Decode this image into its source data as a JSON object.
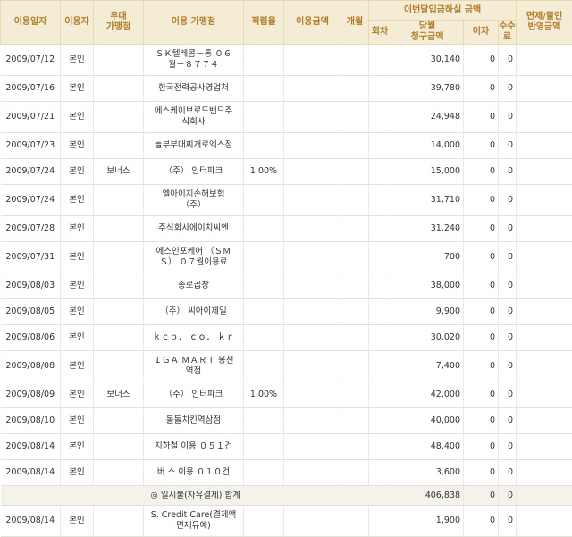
{
  "headers": {
    "use_date": "이용일자",
    "user": "이용자",
    "preferred_merchant": "우대\n가맹점",
    "merchant": "이용 가맹점",
    "accrual_rate": "적립율",
    "amount": "이용금액",
    "installment": "개월",
    "group": "이번달입금하실 금액",
    "installment_no": "회차",
    "current_billing": "당월\n청구금액",
    "interest": "이자",
    "fee": "수수\n료",
    "discount": "면제/할인\n반영금액"
  },
  "rows": [
    {
      "date": "2009/07/12",
      "user": "본인",
      "pref": "",
      "merchant": "ＳＫ텔레콤－통 ０６\n월－８７７４",
      "rate": "",
      "amount": "",
      "inst": "",
      "no": "",
      "billing": "30,140",
      "interest": "0",
      "fee": "0",
      "discount": ""
    },
    {
      "date": "2009/07/16",
      "user": "본인",
      "pref": "",
      "merchant": "한국전력공사영업처",
      "rate": "",
      "amount": "",
      "inst": "",
      "no": "",
      "billing": "39,780",
      "interest": "0",
      "fee": "0",
      "discount": ""
    },
    {
      "date": "2009/07/21",
      "user": "본인",
      "pref": "",
      "merchant": "에스케이브로드밴드주\n식회사",
      "rate": "",
      "amount": "",
      "inst": "",
      "no": "",
      "billing": "24,948",
      "interest": "0",
      "fee": "0",
      "discount": ""
    },
    {
      "date": "2009/07/23",
      "user": "본인",
      "pref": "",
      "merchant": "놀부부대찌개로엑스점",
      "rate": "",
      "amount": "",
      "inst": "",
      "no": "",
      "billing": "14,000",
      "interest": "0",
      "fee": "0",
      "discount": ""
    },
    {
      "date": "2009/07/24",
      "user": "본인",
      "pref": "보너스",
      "merchant": "（주） 인터파크",
      "rate": "1.00%",
      "amount": "",
      "inst": "",
      "no": "",
      "billing": "15,000",
      "interest": "0",
      "fee": "0",
      "discount": ""
    },
    {
      "date": "2009/07/24",
      "user": "본인",
      "pref": "",
      "merchant": "엘아이지손해보험\n（주）",
      "rate": "",
      "amount": "",
      "inst": "",
      "no": "",
      "billing": "31,710",
      "interest": "0",
      "fee": "0",
      "discount": ""
    },
    {
      "date": "2009/07/28",
      "user": "본인",
      "pref": "",
      "merchant": "주식회사에이치씨엔",
      "rate": "",
      "amount": "",
      "inst": "",
      "no": "",
      "billing": "31,240",
      "interest": "0",
      "fee": "0",
      "discount": ""
    },
    {
      "date": "2009/07/31",
      "user": "본인",
      "pref": "",
      "merchant": "에스인포케어 （ＳＭ\nＳ） ０７월이용료",
      "rate": "",
      "amount": "",
      "inst": "",
      "no": "",
      "billing": "700",
      "interest": "0",
      "fee": "0",
      "discount": ""
    },
    {
      "date": "2009/08/03",
      "user": "본인",
      "pref": "",
      "merchant": "종로곱창",
      "rate": "",
      "amount": "",
      "inst": "",
      "no": "",
      "billing": "38,000",
      "interest": "0",
      "fee": "0",
      "discount": ""
    },
    {
      "date": "2009/08/05",
      "user": "본인",
      "pref": "",
      "merchant": "（주） 씨아이제일",
      "rate": "",
      "amount": "",
      "inst": "",
      "no": "",
      "billing": "9,900",
      "interest": "0",
      "fee": "0",
      "discount": ""
    },
    {
      "date": "2009/08/06",
      "user": "본인",
      "pref": "",
      "merchant": "ｋｃｐ． ｃｏ． ｋｒ",
      "rate": "",
      "amount": "",
      "inst": "",
      "no": "",
      "billing": "30,020",
      "interest": "0",
      "fee": "0",
      "discount": ""
    },
    {
      "date": "2009/08/08",
      "user": "본인",
      "pref": "",
      "merchant": "ＩＧＡ ＭＡＲＴ 봉천\n역점",
      "rate": "",
      "amount": "",
      "inst": "",
      "no": "",
      "billing": "7,400",
      "interest": "0",
      "fee": "0",
      "discount": ""
    },
    {
      "date": "2009/08/09",
      "user": "본인",
      "pref": "보너스",
      "merchant": "（주） 인터파크",
      "rate": "1.00%",
      "amount": "",
      "inst": "",
      "no": "",
      "billing": "42,000",
      "interest": "0",
      "fee": "0",
      "discount": ""
    },
    {
      "date": "2009/08/10",
      "user": "본인",
      "pref": "",
      "merchant": "돌돌치킨역삼점",
      "rate": "",
      "amount": "",
      "inst": "",
      "no": "",
      "billing": "40,000",
      "interest": "0",
      "fee": "0",
      "discount": ""
    },
    {
      "date": "2009/08/14",
      "user": "본인",
      "pref": "",
      "merchant": "지하철 이용 ０５１건",
      "rate": "",
      "amount": "",
      "inst": "",
      "no": "",
      "billing": "48,400",
      "interest": "0",
      "fee": "0",
      "discount": ""
    },
    {
      "date": "2009/08/14",
      "user": "본인",
      "pref": "",
      "merchant": "버 스 이용 ０１０건",
      "rate": "",
      "amount": "",
      "inst": "",
      "no": "",
      "billing": "3,600",
      "interest": "0",
      "fee": "0",
      "discount": ""
    }
  ],
  "total": {
    "label": "◎ 일시불(자유결제) 합계",
    "billing": "406,838",
    "interest": "0",
    "fee": "0"
  },
  "after_rows": [
    {
      "date": "2009/08/14",
      "user": "본인",
      "pref": "",
      "merchant": "S. Credit Care(결제액\n면제유예)",
      "rate": "",
      "amount": "",
      "inst": "",
      "no": "",
      "billing": "1,900",
      "interest": "0",
      "fee": "0",
      "discount": ""
    }
  ]
}
